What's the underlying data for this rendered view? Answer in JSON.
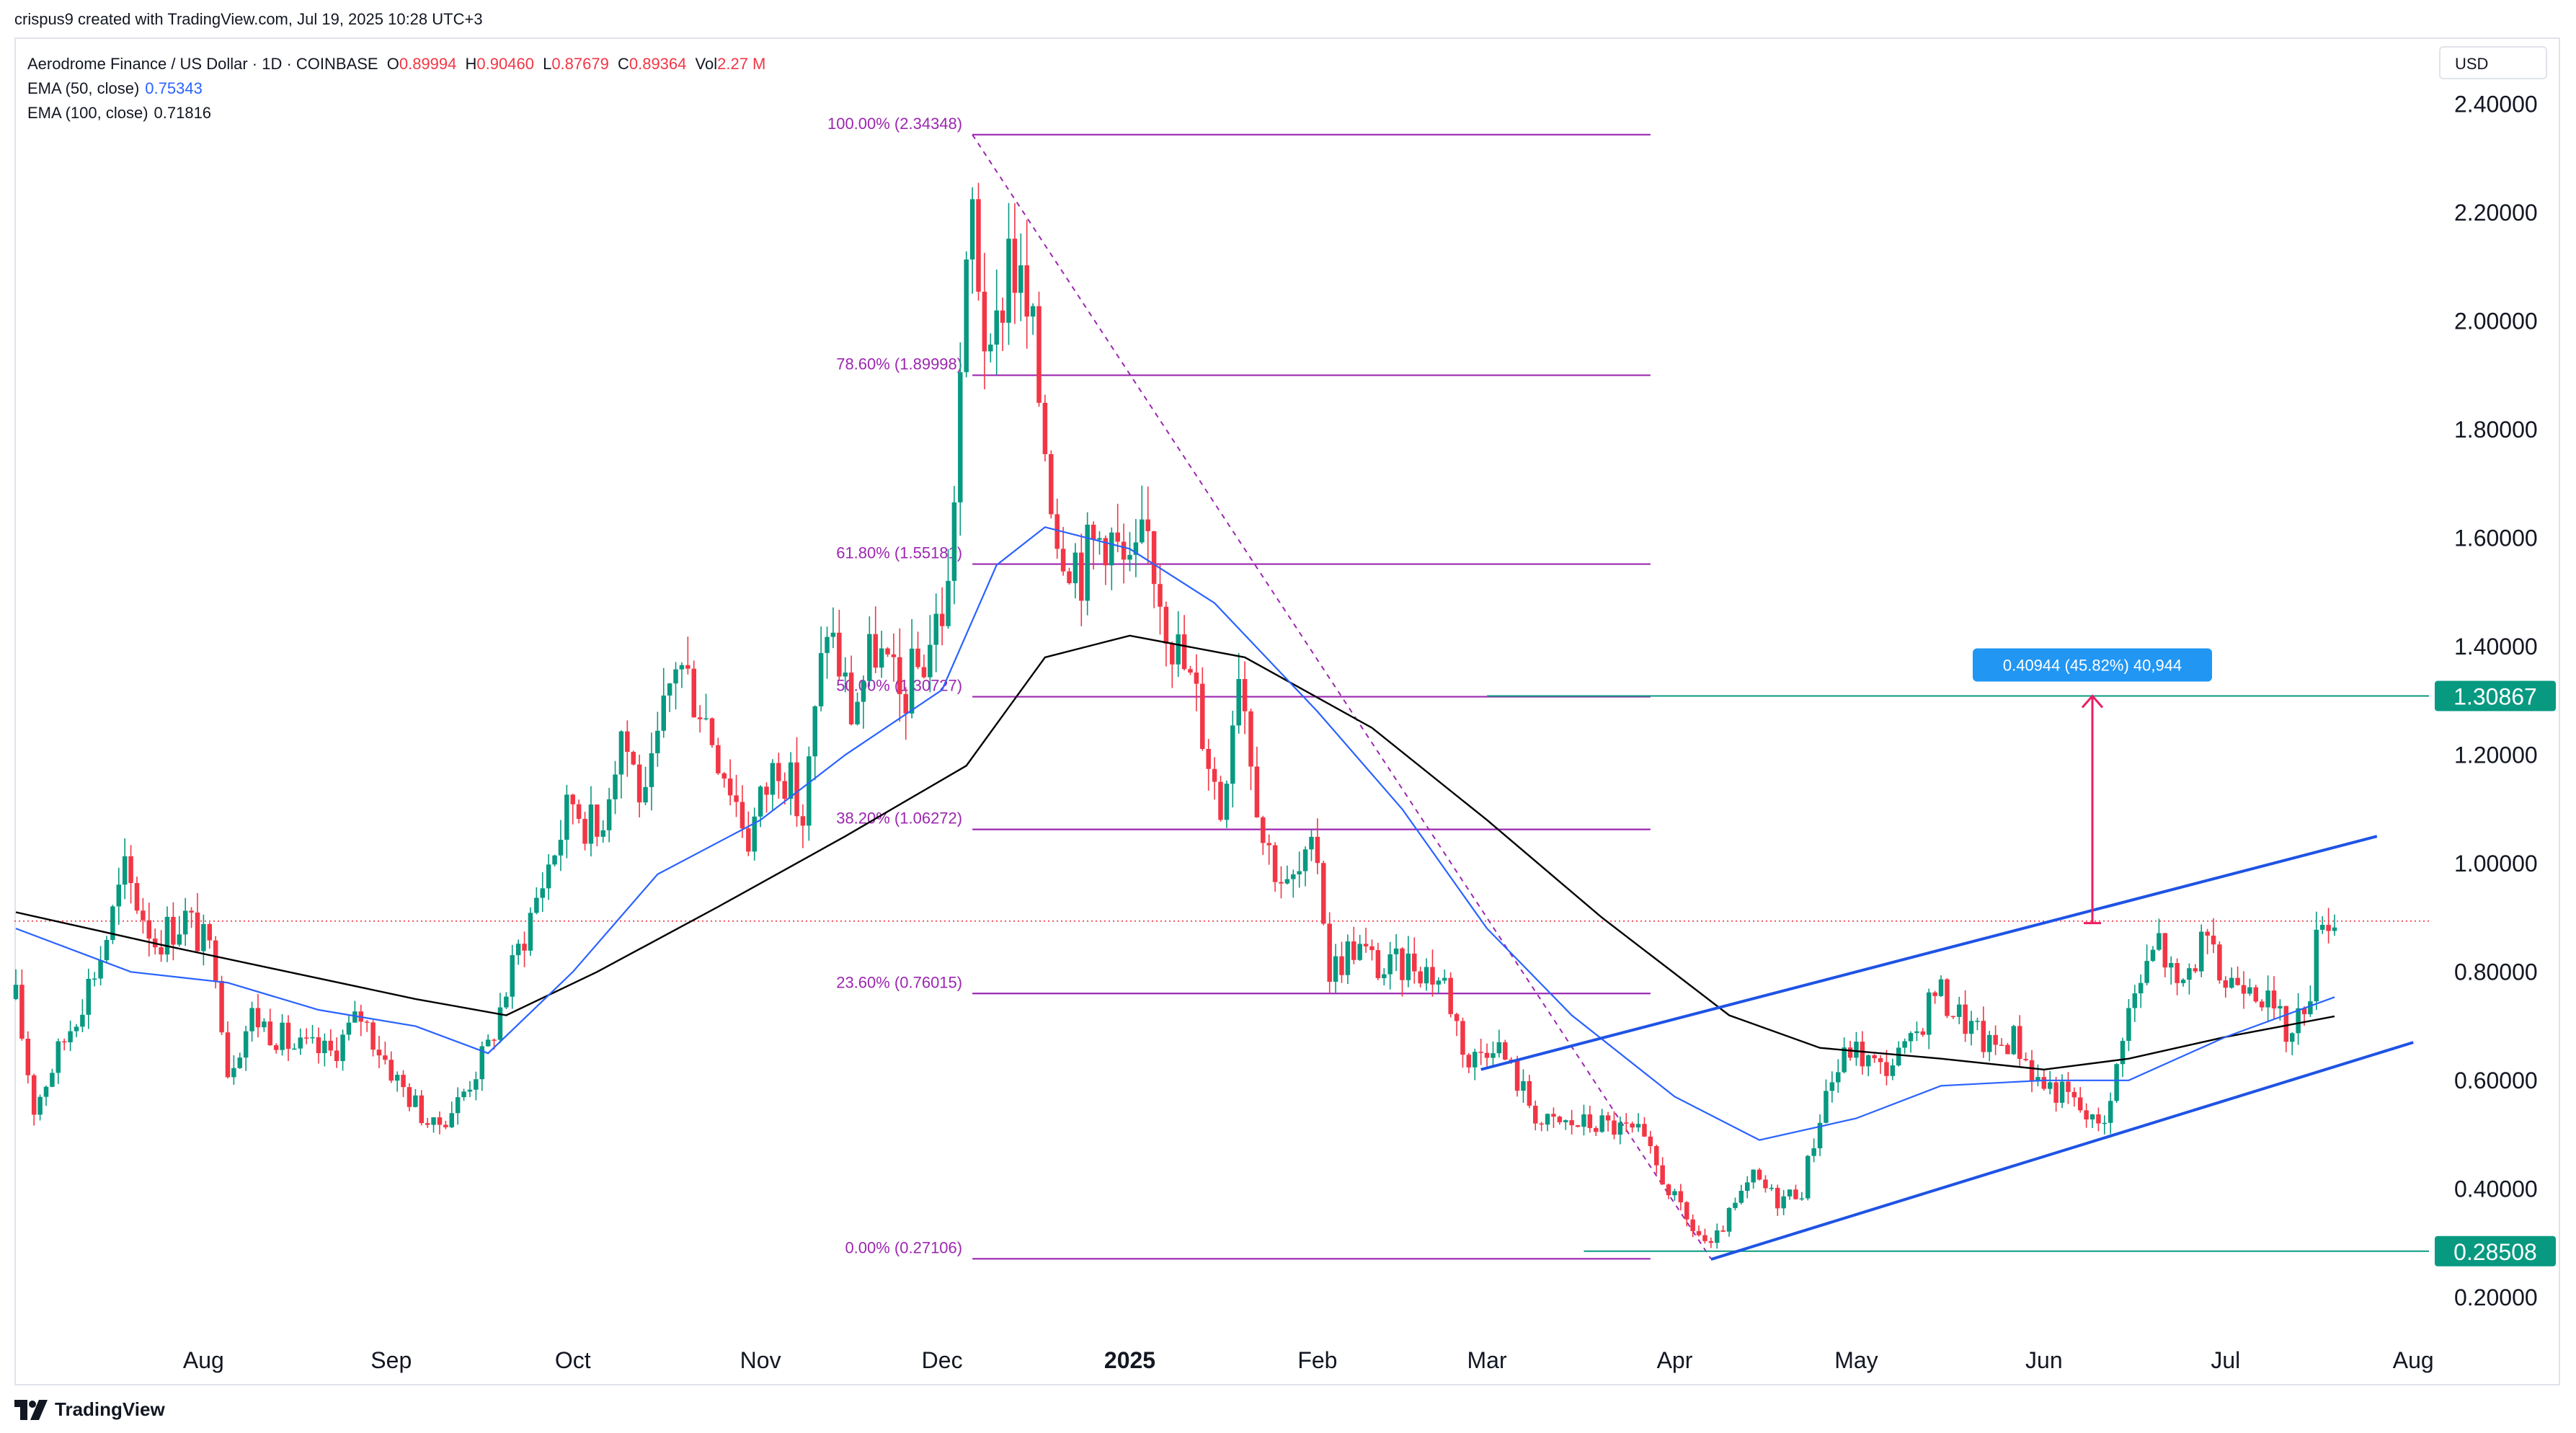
{
  "header": {
    "text": "crispus9 created with TradingView.com, Jul 19, 2025 10:28 UTC+3"
  },
  "legend": {
    "symbol": "Aerodrome Finance / US Dollar · 1D · COINBASE",
    "o_key": "O",
    "o_val": "0.89994",
    "h_key": "H",
    "h_val": "0.90460",
    "l_key": "L",
    "l_val": "0.87679",
    "c_key": "C",
    "c_val": "0.89364",
    "vol_key": "Vol",
    "vol_val": "2.27 M",
    "ema50_label": "EMA (50, close)",
    "ema50_value": "0.75343",
    "ema100_label": "EMA (100, close)",
    "ema100_value": "0.71816"
  },
  "currency": "USD",
  "footer": {
    "brand": "TradingView"
  },
  "colors": {
    "up": "#089981",
    "down": "#f23645",
    "ema50": "#2962ff",
    "ema100": "#000000",
    "fib": "#9c27b0",
    "channel": "#1e53e5",
    "target_arrow": "#e91e63",
    "badge_green": "#089981",
    "measure_blue": "#2196f3"
  },
  "chart_data": {
    "type": "candlestick",
    "title": "Aerodrome Finance / US Dollar",
    "interval": "1D",
    "exchange": "COINBASE",
    "y_ticks": [
      "2.40000",
      "2.20000",
      "2.00000",
      "1.80000",
      "1.60000",
      "1.40000",
      "1.20000",
      "1.00000",
      "0.80000",
      "0.60000",
      "0.40000",
      "0.20000"
    ],
    "y_range": [
      0.12,
      2.52
    ],
    "x_range": [
      "2024-07-01",
      "2025-08-03"
    ],
    "x_labels": [
      {
        "date": "2024-08-01",
        "label": "Aug"
      },
      {
        "date": "2024-09-01",
        "label": "Sep"
      },
      {
        "date": "2024-10-01",
        "label": "Oct"
      },
      {
        "date": "2024-11-01",
        "label": "Nov"
      },
      {
        "date": "2024-12-01",
        "label": "Dec"
      },
      {
        "date": "2025-01-01",
        "label": "2025",
        "bold": true
      },
      {
        "date": "2025-02-01",
        "label": "Feb"
      },
      {
        "date": "2025-03-01",
        "label": "Mar"
      },
      {
        "date": "2025-04-01",
        "label": "Apr"
      },
      {
        "date": "2025-05-01",
        "label": "May"
      },
      {
        "date": "2025-06-01",
        "label": "Jun"
      },
      {
        "date": "2025-07-01",
        "label": "Jul"
      },
      {
        "date": "2025-08-01",
        "label": "Aug"
      }
    ],
    "fib": {
      "start_date": "2024-12-06",
      "end_date": "2025-03-28",
      "levels": [
        {
          "label": "100.00% (2.34348)",
          "value": 2.34348
        },
        {
          "label": "78.60% (1.89998)",
          "value": 1.89998
        },
        {
          "label": "61.80% (1.55181)",
          "value": 1.55181
        },
        {
          "label": "50.00% (1.30727)",
          "value": 1.30727
        },
        {
          "label": "38.20% (1.06272)",
          "value": 1.06272
        },
        {
          "label": "23.60% (0.76015)",
          "value": 0.76015
        },
        {
          "label": "0.00% (0.27106)",
          "value": 0.27106
        }
      ],
      "diagonal": {
        "from_date": "2024-12-06",
        "from_value": 2.34348,
        "to_date": "2025-04-07",
        "to_value": 0.27106
      }
    },
    "channel": {
      "upper": {
        "from_date": "2025-02-28",
        "from_value": 0.62,
        "to_date": "2025-07-26",
        "to_value": 1.05
      },
      "lower": {
        "from_date": "2025-04-07",
        "from_value": 0.27,
        "to_date": "2025-08-01",
        "to_value": 0.67
      }
    },
    "current_price": 0.89364,
    "target": {
      "level": 1.30867,
      "level_label": "1.30867",
      "from_date": "2025-03-01",
      "arrow_date": "2025-06-09",
      "arrow_from": 0.89,
      "arrow_to": 1.30867,
      "measure_text": "0.40944 (45.82%) 40,944"
    },
    "support": {
      "level": 0.28508,
      "level_label": "0.28508",
      "from_date": "2025-03-17"
    },
    "price_series": [
      {
        "date": "2024-07-01",
        "value": 0.75
      },
      {
        "date": "2024-07-04",
        "value": 0.55
      },
      {
        "date": "2024-07-10",
        "value": 0.7
      },
      {
        "date": "2024-07-15",
        "value": 0.83
      },
      {
        "date": "2024-07-19",
        "value": 0.98
      },
      {
        "date": "2024-07-24",
        "value": 0.86
      },
      {
        "date": "2024-07-29",
        "value": 0.9
      },
      {
        "date": "2024-08-03",
        "value": 0.82
      },
      {
        "date": "2024-08-05",
        "value": 0.62
      },
      {
        "date": "2024-08-09",
        "value": 0.72
      },
      {
        "date": "2024-08-16",
        "value": 0.66
      },
      {
        "date": "2024-08-22",
        "value": 0.65
      },
      {
        "date": "2024-08-27",
        "value": 0.72
      },
      {
        "date": "2024-09-02",
        "value": 0.6
      },
      {
        "date": "2024-09-08",
        "value": 0.51
      },
      {
        "date": "2024-09-12",
        "value": 0.56
      },
      {
        "date": "2024-09-17",
        "value": 0.66
      },
      {
        "date": "2024-09-22",
        "value": 0.84
      },
      {
        "date": "2024-09-27",
        "value": 1.0
      },
      {
        "date": "2024-10-01",
        "value": 1.12
      },
      {
        "date": "2024-10-05",
        "value": 1.05
      },
      {
        "date": "2024-10-09",
        "value": 1.25
      },
      {
        "date": "2024-10-13",
        "value": 1.1
      },
      {
        "date": "2024-10-18",
        "value": 1.38
      },
      {
        "date": "2024-10-22",
        "value": 1.3
      },
      {
        "date": "2024-10-27",
        "value": 1.15
      },
      {
        "date": "2024-10-30",
        "value": 1.05
      },
      {
        "date": "2024-11-04",
        "value": 1.2
      },
      {
        "date": "2024-11-08",
        "value": 1.08
      },
      {
        "date": "2024-11-12",
        "value": 1.45
      },
      {
        "date": "2024-11-16",
        "value": 1.28
      },
      {
        "date": "2024-11-20",
        "value": 1.4
      },
      {
        "date": "2024-11-24",
        "value": 1.3
      },
      {
        "date": "2024-11-28",
        "value": 1.38
      },
      {
        "date": "2024-12-02",
        "value": 1.5
      },
      {
        "date": "2024-12-04",
        "value": 1.9
      },
      {
        "date": "2024-12-06",
        "value": 2.2
      },
      {
        "date": "2024-12-09",
        "value": 1.88
      },
      {
        "date": "2024-12-12",
        "value": 2.15
      },
      {
        "date": "2024-12-16",
        "value": 1.95
      },
      {
        "date": "2024-12-20",
        "value": 1.62
      },
      {
        "date": "2024-12-24",
        "value": 1.55
      },
      {
        "date": "2024-12-28",
        "value": 1.62
      },
      {
        "date": "2025-01-01",
        "value": 1.52
      },
      {
        "date": "2025-01-04",
        "value": 1.6
      },
      {
        "date": "2025-01-08",
        "value": 1.42
      },
      {
        "date": "2025-01-12",
        "value": 1.3
      },
      {
        "date": "2025-01-16",
        "value": 1.1
      },
      {
        "date": "2025-01-19",
        "value": 1.38
      },
      {
        "date": "2025-01-23",
        "value": 1.05
      },
      {
        "date": "2025-01-27",
        "value": 0.95
      },
      {
        "date": "2025-02-01",
        "value": 1.02
      },
      {
        "date": "2025-02-03",
        "value": 0.8
      },
      {
        "date": "2025-02-07",
        "value": 0.85
      },
      {
        "date": "2025-02-12",
        "value": 0.8
      },
      {
        "date": "2025-02-17",
        "value": 0.82
      },
      {
        "date": "2025-02-22",
        "value": 0.78
      },
      {
        "date": "2025-02-26",
        "value": 0.63
      },
      {
        "date": "2025-03-02",
        "value": 0.68
      },
      {
        "date": "2025-03-06",
        "value": 0.6
      },
      {
        "date": "2025-03-10",
        "value": 0.52
      },
      {
        "date": "2025-03-15",
        "value": 0.52
      },
      {
        "date": "2025-03-20",
        "value": 0.52
      },
      {
        "date": "2025-03-26",
        "value": 0.5
      },
      {
        "date": "2025-03-30",
        "value": 0.42
      },
      {
        "date": "2025-04-03",
        "value": 0.34
      },
      {
        "date": "2025-04-07",
        "value": 0.29
      },
      {
        "date": "2025-04-10",
        "value": 0.35
      },
      {
        "date": "2025-04-14",
        "value": 0.42
      },
      {
        "date": "2025-04-18",
        "value": 0.38
      },
      {
        "date": "2025-04-22",
        "value": 0.4
      },
      {
        "date": "2025-04-26",
        "value": 0.58
      },
      {
        "date": "2025-04-30",
        "value": 0.66
      },
      {
        "date": "2025-05-05",
        "value": 0.62
      },
      {
        "date": "2025-05-10",
        "value": 0.66
      },
      {
        "date": "2025-05-14",
        "value": 0.77
      },
      {
        "date": "2025-05-18",
        "value": 0.72
      },
      {
        "date": "2025-05-23",
        "value": 0.66
      },
      {
        "date": "2025-05-27",
        "value": 0.68
      },
      {
        "date": "2025-05-31",
        "value": 0.6
      },
      {
        "date": "2025-06-05",
        "value": 0.57
      },
      {
        "date": "2025-06-09",
        "value": 0.52
      },
      {
        "date": "2025-06-12",
        "value": 0.55
      },
      {
        "date": "2025-06-14",
        "value": 0.7
      },
      {
        "date": "2025-06-17",
        "value": 0.78
      },
      {
        "date": "2025-06-20",
        "value": 0.86
      },
      {
        "date": "2025-06-23",
        "value": 0.76
      },
      {
        "date": "2025-06-27",
        "value": 0.85
      },
      {
        "date": "2025-07-01",
        "value": 0.78
      },
      {
        "date": "2025-07-05",
        "value": 0.8
      },
      {
        "date": "2025-07-09",
        "value": 0.72
      },
      {
        "date": "2025-07-12",
        "value": 0.68
      },
      {
        "date": "2025-07-15",
        "value": 0.78
      },
      {
        "date": "2025-07-17",
        "value": 0.92
      },
      {
        "date": "2025-07-19",
        "value": 0.89
      }
    ],
    "ema50_series": [
      {
        "date": "2024-07-01",
        "value": 0.88
      },
      {
        "date": "2024-07-20",
        "value": 0.8
      },
      {
        "date": "2024-08-05",
        "value": 0.78
      },
      {
        "date": "2024-08-20",
        "value": 0.73
      },
      {
        "date": "2024-09-05",
        "value": 0.7
      },
      {
        "date": "2024-09-17",
        "value": 0.65
      },
      {
        "date": "2024-10-01",
        "value": 0.8
      },
      {
        "date": "2024-10-15",
        "value": 0.98
      },
      {
        "date": "2024-11-01",
        "value": 1.08
      },
      {
        "date": "2024-11-15",
        "value": 1.2
      },
      {
        "date": "2024-12-01",
        "value": 1.32
      },
      {
        "date": "2024-12-10",
        "value": 1.55
      },
      {
        "date": "2024-12-18",
        "value": 1.62
      },
      {
        "date": "2025-01-01",
        "value": 1.58
      },
      {
        "date": "2025-01-15",
        "value": 1.48
      },
      {
        "date": "2025-02-01",
        "value": 1.28
      },
      {
        "date": "2025-02-15",
        "value": 1.1
      },
      {
        "date": "2025-03-01",
        "value": 0.88
      },
      {
        "date": "2025-03-15",
        "value": 0.72
      },
      {
        "date": "2025-04-01",
        "value": 0.57
      },
      {
        "date": "2025-04-15",
        "value": 0.49
      },
      {
        "date": "2025-05-01",
        "value": 0.53
      },
      {
        "date": "2025-05-15",
        "value": 0.59
      },
      {
        "date": "2025-06-01",
        "value": 0.6
      },
      {
        "date": "2025-06-15",
        "value": 0.6
      },
      {
        "date": "2025-07-01",
        "value": 0.68
      },
      {
        "date": "2025-07-19",
        "value": 0.75343
      }
    ],
    "ema100_series": [
      {
        "date": "2024-07-01",
        "value": 0.91
      },
      {
        "date": "2024-07-25",
        "value": 0.85
      },
      {
        "date": "2024-08-15",
        "value": 0.8
      },
      {
        "date": "2024-09-05",
        "value": 0.75
      },
      {
        "date": "2024-09-20",
        "value": 0.72
      },
      {
        "date": "2024-10-05",
        "value": 0.8
      },
      {
        "date": "2024-10-25",
        "value": 0.92
      },
      {
        "date": "2024-11-15",
        "value": 1.05
      },
      {
        "date": "2024-12-05",
        "value": 1.18
      },
      {
        "date": "2024-12-18",
        "value": 1.38
      },
      {
        "date": "2025-01-01",
        "value": 1.42
      },
      {
        "date": "2025-01-20",
        "value": 1.38
      },
      {
        "date": "2025-02-10",
        "value": 1.25
      },
      {
        "date": "2025-03-01",
        "value": 1.08
      },
      {
        "date": "2025-03-20",
        "value": 0.9
      },
      {
        "date": "2025-04-10",
        "value": 0.72
      },
      {
        "date": "2025-04-25",
        "value": 0.66
      },
      {
        "date": "2025-05-15",
        "value": 0.64
      },
      {
        "date": "2025-06-01",
        "value": 0.62
      },
      {
        "date": "2025-06-15",
        "value": 0.64
      },
      {
        "date": "2025-07-01",
        "value": 0.68
      },
      {
        "date": "2025-07-19",
        "value": 0.71816
      }
    ]
  }
}
